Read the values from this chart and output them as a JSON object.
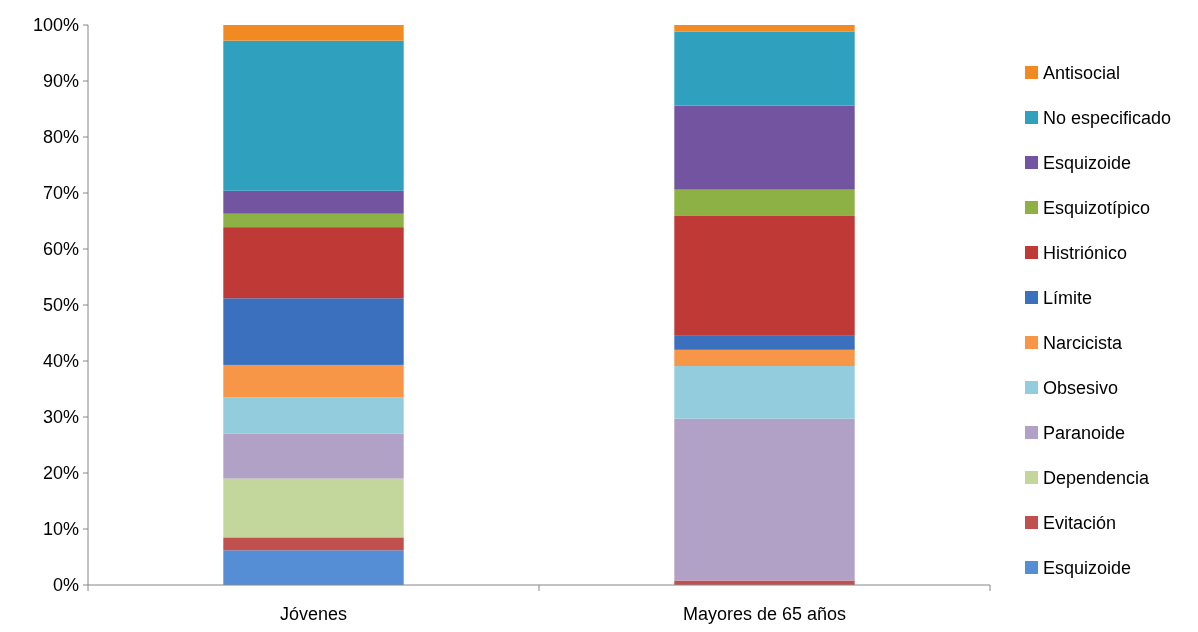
{
  "chart_data": {
    "type": "bar",
    "stacked": true,
    "categories": [
      "Jóvenes",
      "Mayores de 65 años"
    ],
    "series": [
      {
        "name": "Esquizoide",
        "color": "#558ed5",
        "values": [
          6.2,
          0
        ]
      },
      {
        "name": "Evitación",
        "color": "#c0504d",
        "values": [
          2.3,
          0.8
        ]
      },
      {
        "name": "Dependencia",
        "color": "#c3d69b",
        "values": [
          10.5,
          0
        ]
      },
      {
        "name": "Paranoide",
        "color": "#b2a1c7",
        "values": [
          8.0,
          28.9
        ]
      },
      {
        "name": "Obsesivo",
        "color": "#93cddd",
        "values": [
          6.5,
          9.4
        ]
      },
      {
        "name": "Narcicista",
        "color": "#f79646",
        "values": [
          5.8,
          2.9
        ]
      },
      {
        "name": "Límite",
        "color": "#3a70bd",
        "values": [
          11.9,
          2.5
        ]
      },
      {
        "name": "Histriónico",
        "color": "#bf3a36",
        "values": [
          12.7,
          21.4
        ]
      },
      {
        "name": "Esquizotípico",
        "color": "#8db145",
        "values": [
          2.4,
          4.7
        ]
      },
      {
        "name": "Esquizoide",
        "color": "#7354a0",
        "values": [
          4.1,
          15.0
        ]
      },
      {
        "name": "No especificado",
        "color": "#2fa0bd",
        "values": [
          26.8,
          13.2
        ]
      },
      {
        "name": "Antisocial",
        "color": "#f28a24",
        "values": [
          2.8,
          1.2
        ]
      }
    ],
    "ylim": [
      0,
      100
    ],
    "yticks": [
      {
        "value": 0,
        "label": "0%"
      },
      {
        "value": 10,
        "label": "10%"
      },
      {
        "value": 20,
        "label": "20%"
      },
      {
        "value": 30,
        "label": "30%"
      },
      {
        "value": 40,
        "label": "40%"
      },
      {
        "value": 50,
        "label": "50%"
      },
      {
        "value": 60,
        "label": "60%"
      },
      {
        "value": 70,
        "label": "70%"
      },
      {
        "value": 80,
        "label": "80%"
      },
      {
        "value": 90,
        "label": "90%"
      },
      {
        "value": 100,
        "label": "100%"
      }
    ],
    "legend": "right"
  }
}
